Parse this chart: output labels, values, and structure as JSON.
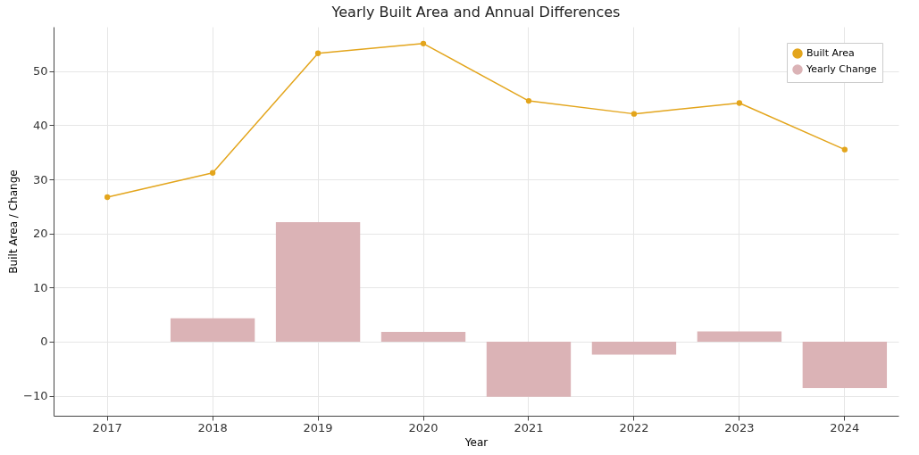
{
  "chart_data": {
    "type": "line",
    "title": "Yearly Built Area and Annual Differences",
    "xlabel": "Year",
    "ylabel": "Built Area / Change",
    "categories": [
      "2017",
      "2018",
      "2019",
      "2020",
      "2021",
      "2022",
      "2023",
      "2024"
    ],
    "series": [
      {
        "name": "Built Area",
        "color": "#e3a51c",
        "values": [
          26.7,
          31.2,
          53.3,
          55.1,
          44.5,
          42.1,
          44.1,
          35.5
        ]
      },
      {
        "name": "Yearly Change",
        "type": "bar",
        "color": "#dbb3b6",
        "values": [
          null,
          4.3,
          22.1,
          1.8,
          -10.2,
          -2.4,
          1.9,
          -8.6
        ]
      }
    ],
    "ylim": [
      -13.7,
      58.2
    ],
    "yticks": [
      -10,
      0,
      10,
      20,
      30,
      40,
      50
    ],
    "grid": true,
    "legend": "top right",
    "marker": "circle",
    "line_style": "solid"
  }
}
